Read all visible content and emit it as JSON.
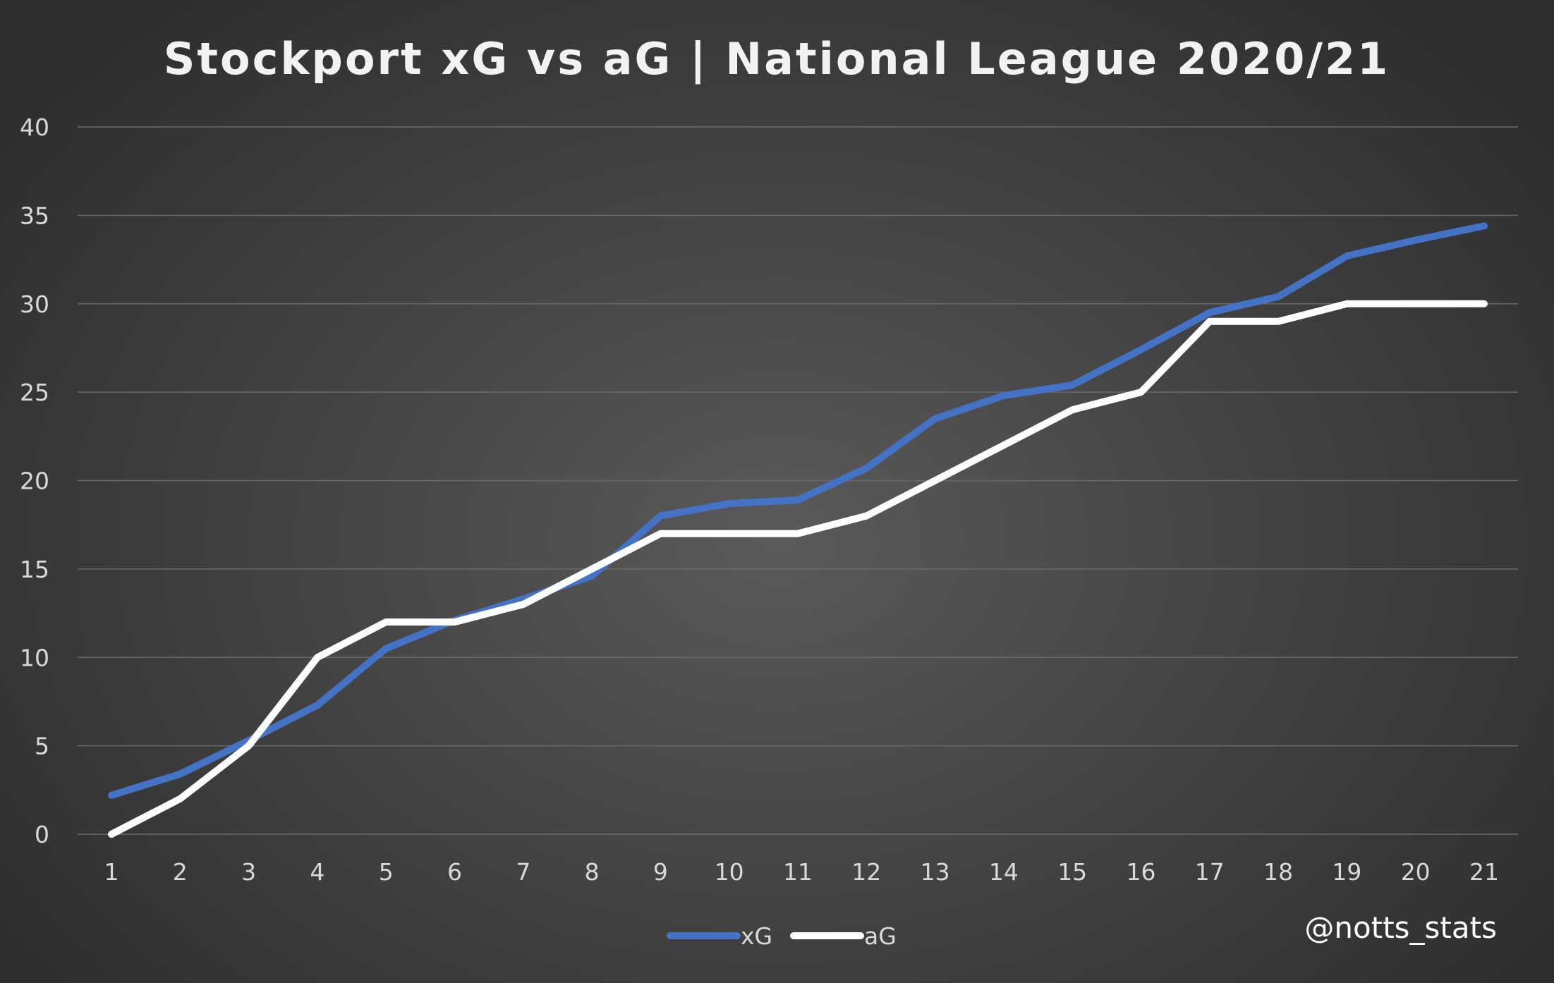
{
  "chart_data": {
    "type": "line",
    "title": "Stockport xG vs aG | National League 2020/21",
    "xlabel": "",
    "ylabel": "",
    "x": [
      1,
      2,
      3,
      4,
      5,
      6,
      7,
      8,
      9,
      10,
      11,
      12,
      13,
      14,
      15,
      16,
      17,
      18,
      19,
      20,
      21
    ],
    "ylim": [
      0,
      40
    ],
    "yticks": [
      0,
      5,
      10,
      15,
      20,
      25,
      30,
      35,
      40
    ],
    "grid": true,
    "legend_position": "bottom-center",
    "series": [
      {
        "name": "xG",
        "color": "#4472c4",
        "values": [
          2.2,
          3.4,
          5.3,
          7.3,
          10.5,
          12.1,
          13.3,
          14.6,
          18.0,
          18.7,
          18.9,
          20.7,
          23.5,
          24.8,
          25.4,
          27.4,
          29.5,
          30.4,
          32.7,
          33.6,
          34.4
        ]
      },
      {
        "name": "aG",
        "color": "#ffffff",
        "values": [
          0,
          2,
          5,
          10,
          12,
          12,
          13,
          15,
          17,
          17,
          17,
          18,
          20,
          22,
          24,
          25,
          29,
          29,
          30,
          30,
          30
        ]
      }
    ]
  },
  "credit": "@notts_stats",
  "colors": {
    "background": "#3d3d3d",
    "grid": "#6a6a6a",
    "text": "#d9d9d9"
  }
}
